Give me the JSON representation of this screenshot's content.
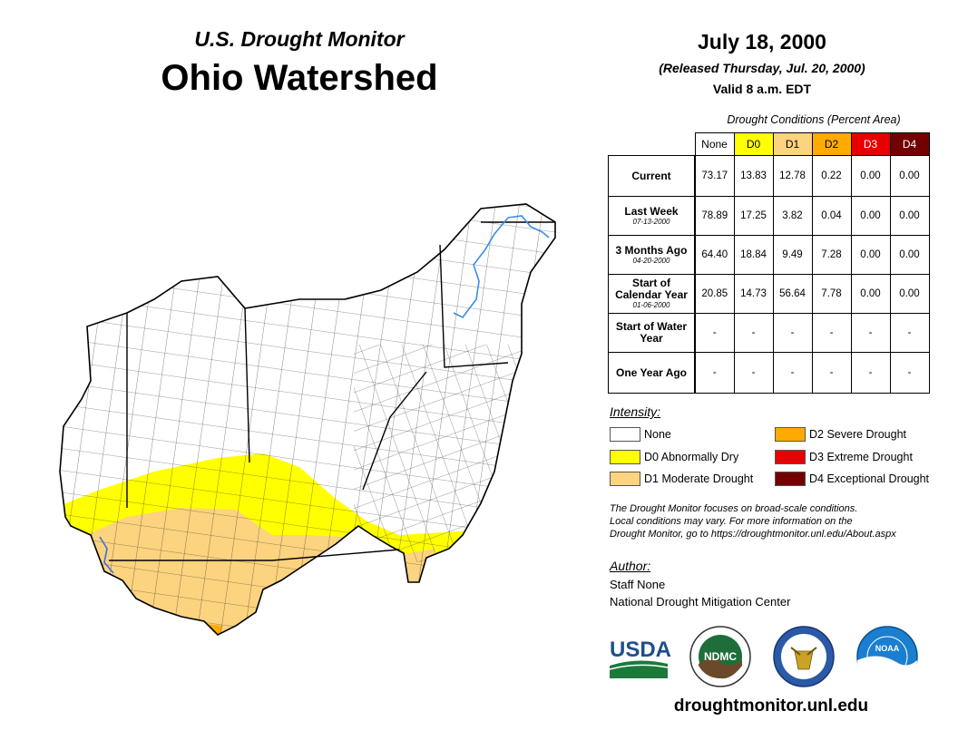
{
  "header": {
    "subtitle": "U.S. Drought Monitor",
    "title": "Ohio Watershed",
    "date": "July 18, 2000",
    "released": "(Released Thursday, Jul. 20, 2000)",
    "valid": "Valid 8 a.m. EDT"
  },
  "table": {
    "caption": "Drought Conditions (Percent Area)",
    "columns": [
      "None",
      "D0",
      "D1",
      "D2",
      "D3",
      "D4"
    ],
    "rows": [
      {
        "label": "Current",
        "date": "",
        "values": [
          "73.17",
          "13.83",
          "12.78",
          "0.22",
          "0.00",
          "0.00"
        ]
      },
      {
        "label": "Last Week",
        "date": "07-13-2000",
        "values": [
          "78.89",
          "17.25",
          "3.82",
          "0.04",
          "0.00",
          "0.00"
        ]
      },
      {
        "label": "3 Months Ago",
        "date": "04-20-2000",
        "values": [
          "64.40",
          "18.84",
          "9.49",
          "7.28",
          "0.00",
          "0.00"
        ]
      },
      {
        "label": "Start of Calendar Year",
        "date": "01-06-2000",
        "values": [
          "20.85",
          "14.73",
          "56.64",
          "7.78",
          "0.00",
          "0.00"
        ]
      },
      {
        "label": "Start of Water Year",
        "date": "",
        "values": [
          "-",
          "-",
          "-",
          "-",
          "-",
          "-"
        ]
      },
      {
        "label": "One Year Ago",
        "date": "",
        "values": [
          "-",
          "-",
          "-",
          "-",
          "-",
          "-"
        ]
      }
    ]
  },
  "legend": {
    "title": "Intensity:",
    "items": [
      {
        "label": "None",
        "color": "#ffffff"
      },
      {
        "label": "D0 Abnormally Dry",
        "color": "#ffff00"
      },
      {
        "label": "D1 Moderate Drought",
        "color": "#fcd37f"
      },
      {
        "label": "D2 Severe Drought",
        "color": "#ffaa00"
      },
      {
        "label": "D3 Extreme Drought",
        "color": "#e60000"
      },
      {
        "label": "D4 Exceptional Drought",
        "color": "#730000"
      }
    ]
  },
  "note": {
    "line1": "The Drought Monitor focuses on broad-scale conditions.",
    "line2": "Local conditions may vary. For more information on the",
    "line3": "Drought Monitor, go to https://droughtmonitor.unl.edu/About.aspx"
  },
  "author": {
    "title": "Author:",
    "name": "Staff None",
    "org": "National Drought Mitigation Center"
  },
  "logos": {
    "usda": "USDA",
    "ndmc": "NDMC",
    "noaa": "NOAA"
  },
  "footer": {
    "url": "droughtmonitor.unl.edu"
  }
}
